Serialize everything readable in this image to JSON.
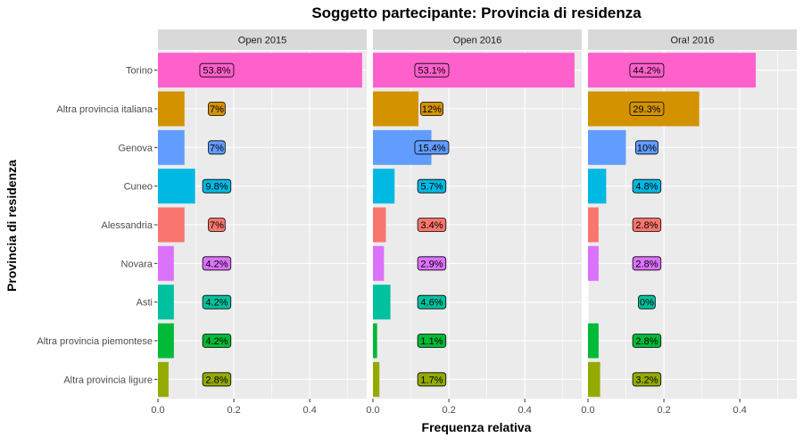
{
  "chart_data": {
    "type": "bar",
    "orientation": "horizontal",
    "title": "Soggetto partecipante: Provincia di residenza",
    "xlabel": "Frequenza relativa",
    "ylabel": "Provincia di residenza",
    "xlim": [
      0,
      0.55
    ],
    "x_ticks": [
      "0.0",
      "0.2",
      "0.4"
    ],
    "grid": true,
    "legend": "none",
    "categories": [
      "Torino",
      "Altra provincia italiana",
      "Genova",
      "Cuneo",
      "Alessandria",
      "Novara",
      "Asti",
      "Altra provincia piemontese",
      "Altra provincia ligure"
    ],
    "category_colors": [
      "#FF61CC",
      "#D39200",
      "#619CFF",
      "#00B9E3",
      "#F8766D",
      "#DB72FB",
      "#00C19F",
      "#00BA38",
      "#93AA00"
    ],
    "panels": [
      {
        "name": "Open 2015",
        "values": [
          0.538,
          0.07,
          0.07,
          0.098,
          0.07,
          0.042,
          0.042,
          0.042,
          0.028
        ],
        "labels": [
          "53.8%",
          "7%",
          "7%",
          "9.8%",
          "7%",
          "4.2%",
          "4.2%",
          "4.2%",
          "2.8%"
        ]
      },
      {
        "name": "Open 2016",
        "values": [
          0.531,
          0.12,
          0.154,
          0.057,
          0.034,
          0.029,
          0.046,
          0.011,
          0.017
        ],
        "labels": [
          "53.1%",
          "12%",
          "15.4%",
          "5.7%",
          "3.4%",
          "2.9%",
          "4.6%",
          "1.1%",
          "1.7%"
        ]
      },
      {
        "name": "Ora! 2016",
        "values": [
          0.442,
          0.293,
          0.1,
          0.048,
          0.028,
          0.028,
          0.0,
          0.028,
          0.032
        ],
        "labels": [
          "44.2%",
          "29.3%",
          "10%",
          "4.8%",
          "2.8%",
          "2.8%",
          "0%",
          "2.8%",
          "3.2%"
        ]
      }
    ]
  }
}
